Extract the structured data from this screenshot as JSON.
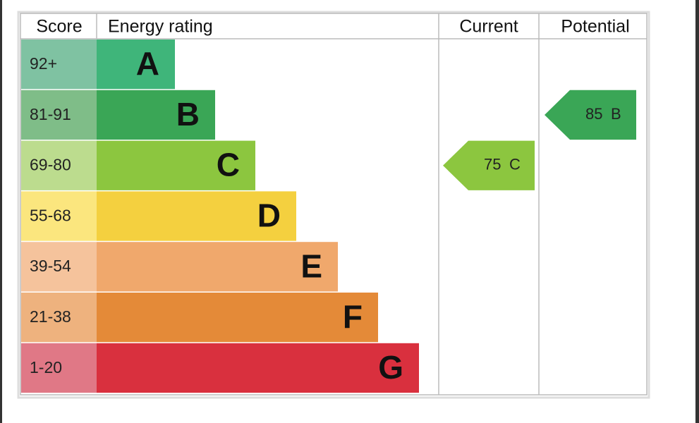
{
  "header": {
    "score": "Score",
    "rating": "Energy rating",
    "current": "Current",
    "potential": "Potential"
  },
  "bands": [
    {
      "score": "92+",
      "letter": "A"
    },
    {
      "score": "81-91",
      "letter": "B"
    },
    {
      "score": "69-80",
      "letter": "C"
    },
    {
      "score": "55-68",
      "letter": "D"
    },
    {
      "score": "39-54",
      "letter": "E"
    },
    {
      "score": "21-38",
      "letter": "F"
    },
    {
      "score": "1-20",
      "letter": "G"
    }
  ],
  "current": {
    "value": 75,
    "letter": "C"
  },
  "potential": {
    "value": 85,
    "letter": "B"
  }
}
